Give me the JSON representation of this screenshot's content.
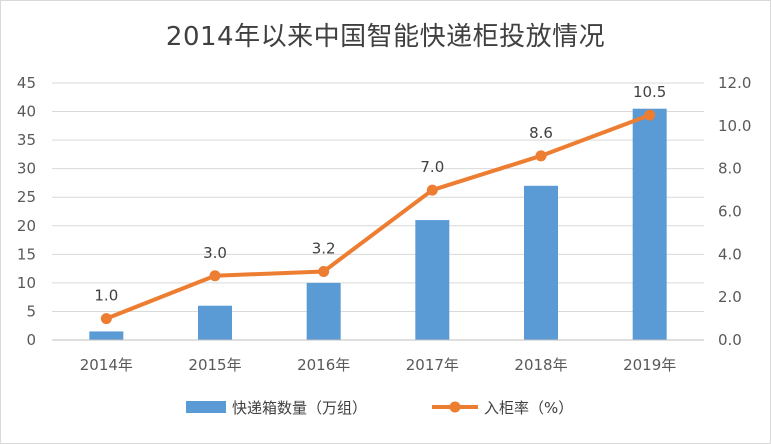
{
  "chart_data": {
    "type": "bar+line",
    "title": "2014年以来中国智能快递柜投放情况",
    "categories": [
      "2014年",
      "2015年",
      "2016年",
      "2017年",
      "2018年",
      "2019年"
    ],
    "series": [
      {
        "name": "快递箱数量（万组）",
        "type": "bar",
        "axis": "left",
        "color": "#5b9bd5",
        "values": [
          1.5,
          6,
          10,
          21,
          27,
          40.5
        ]
      },
      {
        "name": "入柜率（%）",
        "type": "line",
        "axis": "right",
        "color": "#ed7d31",
        "values": [
          1.0,
          3.0,
          3.2,
          7.0,
          8.6,
          10.5
        ],
        "labels": [
          "1.0",
          "3.0",
          "3.2",
          "7.0",
          "8.6",
          "10.5"
        ]
      }
    ],
    "y_left": {
      "min": 0,
      "max": 45,
      "step": 5,
      "ticks": [
        "0",
        "5",
        "10",
        "15",
        "20",
        "25",
        "30",
        "35",
        "40",
        "45"
      ]
    },
    "y_right": {
      "min": 0,
      "max": 12,
      "step": 2,
      "ticks": [
        "0.0",
        "2.0",
        "4.0",
        "6.0",
        "8.0",
        "10.0",
        "12.0"
      ]
    },
    "grid": true,
    "legend_position": "bottom"
  }
}
